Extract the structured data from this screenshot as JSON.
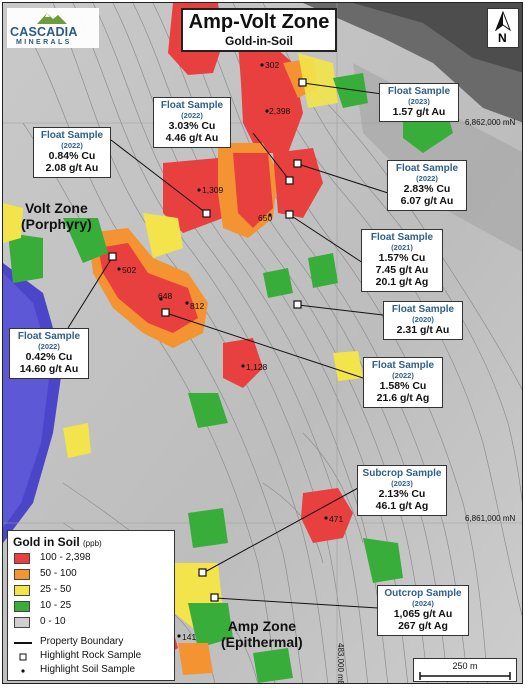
{
  "title": "Amp-Volt Zone",
  "subtitle": "Gold-in-Soil",
  "logo": {
    "name": "CASCADIA",
    "sub": "MINERALS"
  },
  "north_arrow": {
    "letter": "N"
  },
  "zones": {
    "volt": [
      "Volt Zone",
      "(Porphyry)"
    ],
    "amp": [
      "Amp Zone",
      "(Epithermal)"
    ]
  },
  "grid_labels": {
    "northing_top": "6,862,000 mN",
    "northing_bottom": "6,861,000 mN",
    "easting": "483,000 mE"
  },
  "soil_labels": [
    "302",
    "2,398",
    "1,309",
    "650",
    "502",
    "648",
    "812",
    "1,128",
    "471",
    "141"
  ],
  "callouts": [
    {
      "title": "Float Sample",
      "year": "(2023)",
      "lines": [
        "1.57 g/t Au"
      ]
    },
    {
      "title": "Float Sample",
      "year": "(2022)",
      "lines": [
        "3.03% Cu",
        "4.46 g/t Au"
      ]
    },
    {
      "title": "Float Sample",
      "year": "(2022)",
      "lines": [
        "0.84% Cu",
        "2.08 g/t Au"
      ]
    },
    {
      "title": "Float Sample",
      "year": "(2022)",
      "lines": [
        "2.83% Cu",
        "6.07 g/t Au"
      ]
    },
    {
      "title": "Float Sample",
      "year": "(2021)",
      "lines": [
        "1.57% Cu",
        "7.45 g/t Au",
        "20.1 g/t Ag"
      ]
    },
    {
      "title": "Float Sample",
      "year": "(2020)",
      "lines": [
        "2.31 g/t Au"
      ]
    },
    {
      "title": "Float Sample",
      "year": "(2022)",
      "lines": [
        "0.42% Cu",
        "14.60 g/t Au"
      ]
    },
    {
      "title": "Float Sample",
      "year": "(2022)",
      "lines": [
        "1.58% Cu",
        "21.6 g/t Ag"
      ]
    },
    {
      "title": "Subcrop Sample",
      "year": "(2023)",
      "lines": [
        "2.13% Cu",
        "46.1 g/t Ag"
      ]
    },
    {
      "title": "Outcrop Sample",
      "year": "(2024)",
      "lines": [
        "1,065 g/t Au",
        "267 g/t Ag"
      ]
    }
  ],
  "legend": {
    "title": "Gold in Soil",
    "unit": "(ppb)",
    "classes": [
      {
        "label": "100 - 2,398",
        "color": "#e8403f"
      },
      {
        "label": "50 - 100",
        "color": "#f39332"
      },
      {
        "label": "25 - 50",
        "color": "#f2e44a"
      },
      {
        "label": "10 - 25",
        "color": "#39ad3a"
      },
      {
        "label": "0 - 10",
        "color": "#cfcfcf"
      }
    ],
    "symbols": [
      "Property Boundary",
      "Highlight Rock Sample",
      "Highlight Soil Sample"
    ]
  },
  "scale_bar": {
    "label": "250 m"
  }
}
